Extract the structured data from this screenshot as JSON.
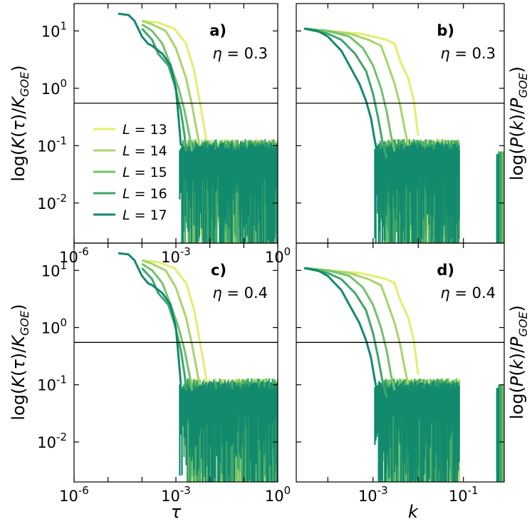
{
  "colors": [
    "#e1ef6e",
    "#a8d46a",
    "#75c26a",
    "#3fa66a",
    "#128a6d"
  ],
  "legend": {
    "prefix": "L",
    "eq": "= ",
    "entries": [
      "13",
      "14",
      "15",
      "16",
      "17"
    ]
  },
  "labels": {
    "left_ylabel": [
      "log(",
      "K",
      "(",
      "τ",
      ")/",
      "K",
      "GOE",
      ")"
    ],
    "right_ylabel": [
      "log(",
      "P",
      "(",
      "k",
      ")/",
      "P",
      "GOE",
      ")"
    ],
    "xlabel_left": "τ",
    "xlabel_right": "k",
    "sup10": "10"
  },
  "chart_data": [
    {
      "panel": "a)",
      "eta_symbol": "η",
      "eta_text": " = 0.3",
      "type": "line",
      "x_scale": "log",
      "y_scale": "log",
      "xlim": [
        1e-06,
        1
      ],
      "ylim": [
        0.002,
        30
      ],
      "x_ticks": [
        "-6",
        "-3",
        "0"
      ],
      "y_ticks": [
        "1",
        "0",
        "-1",
        "-2"
      ],
      "hline": 0.55,
      "series": [
        {
          "name": "L = 13",
          "x": [
            0.0001,
            0.0003,
            0.0009,
            0.002,
            0.0035,
            0.005,
            0.0065,
            0.008
          ],
          "y": [
            15,
            14,
            11,
            6,
            2,
            0.6,
            0.25,
            0.12
          ]
        },
        {
          "name": "L = 14",
          "x": [
            0.0001,
            0.0002,
            0.0005,
            0.001,
            0.002,
            0.003,
            0.004,
            0.005
          ],
          "y": [
            15,
            13,
            10,
            5,
            1.5,
            0.5,
            0.2,
            0.1
          ]
        },
        {
          "name": "L = 15",
          "x": [
            0.0001,
            0.0002,
            0.0004,
            0.0007,
            0.0012,
            0.0018,
            0.0025,
            0.003
          ],
          "y": [
            13,
            10,
            6,
            2.5,
            1.0,
            0.4,
            0.15,
            0.08
          ]
        },
        {
          "name": "L = 16",
          "x": [
            0.0001,
            0.0002,
            0.0003,
            0.0006,
            0.0009,
            0.0014,
            0.0018,
            0.002
          ],
          "y": [
            11,
            7,
            4,
            2.5,
            1.2,
            0.4,
            0.15,
            0.08
          ]
        },
        {
          "name": "L = 17",
          "x": [
            2e-05,
            4e-05,
            6e-05,
            0.0001,
            0.00015,
            0.0002,
            0.0004,
            0.0007,
            0.001,
            0.0012,
            0.0014
          ],
          "y": [
            20,
            19,
            15,
            8,
            6,
            5.5,
            4,
            2.5,
            1,
            0.3,
            0.1
          ]
        }
      ],
      "noise": {
        "x_start": 0.0013,
        "x_end": 1,
        "y_low": 0.002,
        "y_high": 0.13
      }
    },
    {
      "panel": "b)",
      "eta_symbol": "η",
      "eta_text": " = 0.3",
      "type": "line",
      "x_scale": "log",
      "y_scale": "log",
      "xlim": [
        2e-05,
        0.8
      ],
      "ylim": [
        0.002,
        30
      ],
      "x_ticks": [],
      "y_ticks": [],
      "hline": 0.55,
      "series": [
        {
          "name": "L = 13",
          "x": [
            3e-05,
            0.0001,
            0.0005,
            0.001,
            0.002,
            0.003,
            0.004,
            0.006,
            0.008,
            0.01
          ],
          "y": [
            11,
            10,
            9,
            8,
            7,
            6,
            3,
            1.5,
            0.6,
            0.15
          ]
        },
        {
          "name": "L = 14",
          "x": [
            3e-05,
            0.0001,
            0.0003,
            0.0008,
            0.0015,
            0.002,
            0.003,
            0.004,
            0.005,
            0.006
          ],
          "y": [
            11,
            10,
            9,
            7,
            5.5,
            3,
            1.2,
            0.5,
            0.2,
            0.1
          ]
        },
        {
          "name": "L = 15",
          "x": [
            3e-05,
            0.0001,
            0.0003,
            0.0006,
            0.001,
            0.0015,
            0.002,
            0.0025,
            0.003
          ],
          "y": [
            11,
            10,
            8,
            5,
            2.5,
            1,
            0.4,
            0.15,
            0.08
          ]
        },
        {
          "name": "L = 16",
          "x": [
            3e-05,
            0.0001,
            0.0002,
            0.0004,
            0.0007,
            0.001,
            0.0013,
            0.0016,
            0.002
          ],
          "y": [
            11,
            9,
            7,
            4,
            2,
            0.8,
            0.3,
            0.12,
            0.06
          ]
        },
        {
          "name": "L = 17",
          "x": [
            3e-05,
            6e-05,
            0.0001,
            0.0002,
            0.0003,
            0.0005,
            0.0007,
            0.0009,
            0.0011,
            0.0013
          ],
          "y": [
            11,
            10,
            8,
            4.5,
            2.5,
            1.2,
            0.6,
            0.3,
            0.12,
            0.06
          ]
        }
      ],
      "noise": {
        "x_start": 0.0011,
        "x_end": 0.08,
        "y_low": 0.002,
        "y_high": 0.13
      },
      "noise2": {
        "x_start": 0.55,
        "x_end": 0.6,
        "y_low": 0.002,
        "y_high": 0.08
      }
    },
    {
      "panel": "c)",
      "eta_symbol": "η",
      "eta_text": " = 0.4",
      "type": "line",
      "x_scale": "log",
      "y_scale": "log",
      "xlim": [
        1e-06,
        1
      ],
      "ylim": [
        0.002,
        30
      ],
      "x_ticks": [
        "-6",
        "-3",
        "0"
      ],
      "y_ticks": [
        "1",
        "0",
        "-1",
        "-2"
      ],
      "hline": 0.55,
      "series": [
        {
          "name": "L = 13",
          "x": [
            0.0001,
            0.0003,
            0.0009,
            0.002,
            0.0035,
            0.005,
            0.0065,
            0.008
          ],
          "y": [
            15,
            14,
            11,
            6,
            2,
            0.6,
            0.25,
            0.12
          ]
        },
        {
          "name": "L = 14",
          "x": [
            0.0001,
            0.0002,
            0.0005,
            0.001,
            0.002,
            0.003,
            0.004,
            0.005
          ],
          "y": [
            15,
            13,
            10,
            5,
            1.5,
            0.5,
            0.2,
            0.1
          ]
        },
        {
          "name": "L = 15",
          "x": [
            0.0001,
            0.0002,
            0.0004,
            0.0007,
            0.0012,
            0.0018,
            0.0025,
            0.003
          ],
          "y": [
            13,
            10,
            6,
            2.5,
            1.0,
            0.4,
            0.15,
            0.08
          ]
        },
        {
          "name": "L = 16",
          "x": [
            0.0001,
            0.0002,
            0.0003,
            0.0006,
            0.0009,
            0.0014,
            0.0018,
            0.002
          ],
          "y": [
            11,
            7,
            4,
            2.5,
            1.2,
            0.4,
            0.15,
            0.08
          ]
        },
        {
          "name": "L = 17",
          "x": [
            2e-05,
            4e-05,
            6e-05,
            0.0001,
            0.00015,
            0.0002,
            0.0004,
            0.0007,
            0.001,
            0.0012,
            0.0014
          ],
          "y": [
            20,
            19,
            15,
            8,
            6,
            5.5,
            4,
            2.5,
            1,
            0.3,
            0.1
          ]
        }
      ],
      "noise": {
        "x_start": 0.0013,
        "x_end": 1,
        "y_low": 0.002,
        "y_high": 0.13
      }
    },
    {
      "panel": "d)",
      "eta_symbol": "η",
      "eta_text": " = 0.4",
      "type": "line",
      "x_scale": "log",
      "y_scale": "log",
      "xlim": [
        2e-05,
        0.8
      ],
      "ylim": [
        0.002,
        30
      ],
      "x_ticks": [
        "-3",
        "-1"
      ],
      "y_ticks": [],
      "hline": 0.55,
      "series": [
        {
          "name": "L = 13",
          "x": [
            3e-05,
            0.0001,
            0.0005,
            0.001,
            0.002,
            0.003,
            0.004,
            0.006,
            0.008,
            0.01
          ],
          "y": [
            11,
            10,
            9,
            8,
            7,
            6,
            3,
            1.5,
            0.6,
            0.15
          ]
        },
        {
          "name": "L = 14",
          "x": [
            3e-05,
            0.0001,
            0.0003,
            0.0008,
            0.0015,
            0.002,
            0.003,
            0.004,
            0.005,
            0.006
          ],
          "y": [
            11,
            10,
            9,
            7,
            5.5,
            3,
            1.2,
            0.5,
            0.2,
            0.1
          ]
        },
        {
          "name": "L = 15",
          "x": [
            3e-05,
            0.0001,
            0.0003,
            0.0006,
            0.001,
            0.0015,
            0.002,
            0.0025,
            0.003
          ],
          "y": [
            11,
            10,
            8,
            5,
            2.5,
            1,
            0.4,
            0.15,
            0.08
          ]
        },
        {
          "name": "L = 16",
          "x": [
            3e-05,
            0.0001,
            0.0002,
            0.0004,
            0.0007,
            0.001,
            0.0013,
            0.0016,
            0.002
          ],
          "y": [
            11,
            9,
            7,
            4,
            2,
            0.8,
            0.3,
            0.12,
            0.06
          ]
        },
        {
          "name": "L = 17",
          "x": [
            3e-05,
            6e-05,
            0.0001,
            0.0002,
            0.0003,
            0.0005,
            0.0007,
            0.0009,
            0.0011,
            0.0013
          ],
          "y": [
            11,
            10,
            8,
            4.5,
            2.5,
            1.2,
            0.6,
            0.3,
            0.12,
            0.06
          ]
        }
      ],
      "noise": {
        "x_start": 0.0011,
        "x_end": 0.08,
        "y_low": 0.002,
        "y_high": 0.13
      },
      "noise2": {
        "x_start": 0.55,
        "x_end": 0.6,
        "y_low": 0.002,
        "y_high": 0.1
      }
    }
  ]
}
